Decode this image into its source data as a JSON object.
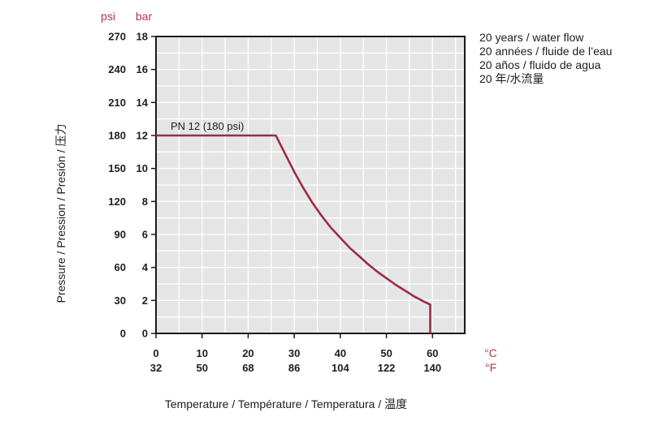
{
  "chart_data": {
    "type": "line",
    "title": "",
    "notes": [
      "20 years / water flow",
      "20 années / fluide de l’eau",
      "20 años / fluido de agua",
      "20 年/水流量"
    ],
    "xlabel": "Temperature / Température / Temperatura / 温度",
    "ylabel": "Pressure / Pression / Presión / 压力",
    "x_unit_primary": "°C",
    "x_unit_secondary": "°F",
    "y_unit_primary": "bar",
    "y_unit_secondary": "psi",
    "x_ticks_c": [
      "0",
      "10",
      "20",
      "30",
      "40",
      "50",
      "60"
    ],
    "x_ticks_f": [
      "32",
      "50",
      "68",
      "86",
      "104",
      "122",
      "140"
    ],
    "y_ticks_bar": [
      "0",
      "2",
      "4",
      "6",
      "8",
      "10",
      "12",
      "14",
      "16",
      "18"
    ],
    "y_ticks_psi": [
      "0",
      "30",
      "60",
      "90",
      "120",
      "150",
      "180",
      "210",
      "240",
      "270"
    ],
    "xlim": [
      0,
      67
    ],
    "ylim": [
      0,
      18
    ],
    "x_grid_step": 5,
    "y_grid_step": 1,
    "grid": true,
    "series": [
      {
        "name": "PN 12 (180 psi)",
        "color": "#9b2c46",
        "points": [
          [
            0,
            12
          ],
          [
            26,
            12
          ],
          [
            28,
            10.9
          ],
          [
            30,
            9.8
          ],
          [
            32,
            8.8
          ],
          [
            34,
            7.9
          ],
          [
            36,
            7.1
          ],
          [
            38,
            6.4
          ],
          [
            40,
            5.8
          ],
          [
            42,
            5.2
          ],
          [
            44,
            4.7
          ],
          [
            46,
            4.2
          ],
          [
            48,
            3.75
          ],
          [
            50,
            3.35
          ],
          [
            52,
            2.95
          ],
          [
            54,
            2.6
          ],
          [
            56,
            2.25
          ],
          [
            58,
            1.95
          ],
          [
            59.5,
            1.75
          ],
          [
            59.5,
            0
          ]
        ]
      }
    ]
  },
  "colors": {
    "plot_background": "#e5e5e6",
    "grid": "#ffffff",
    "axis": "#1a1a1a",
    "unit_accent": "#b3344e"
  }
}
